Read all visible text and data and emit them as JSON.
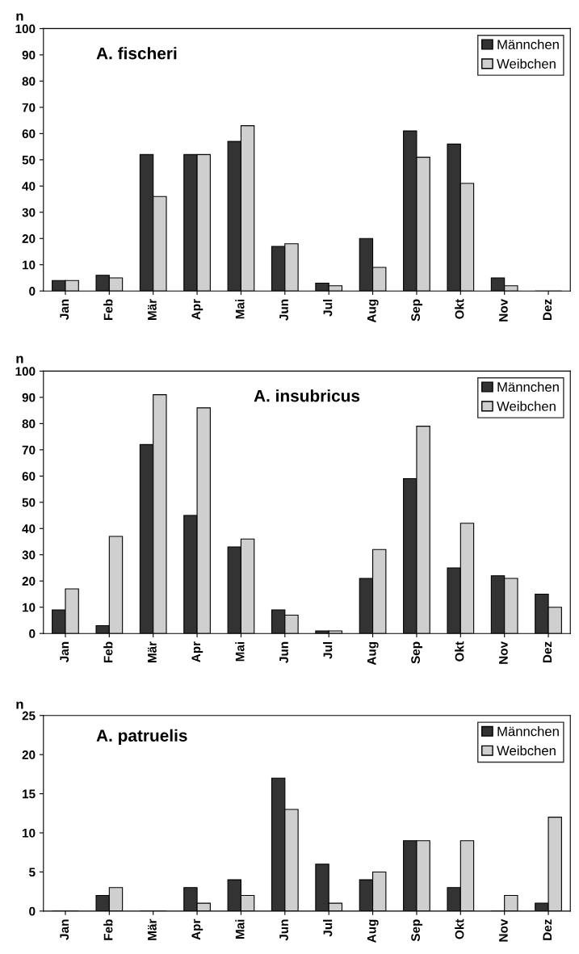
{
  "chart_data": [
    {
      "type": "bar",
      "title": "A. fischeri",
      "ylabel": "n",
      "categories": [
        "Jan",
        "Feb",
        "Mär",
        "Apr",
        "Mai",
        "Jun",
        "Jul",
        "Aug",
        "Sep",
        "Okt",
        "Nov",
        "Dez"
      ],
      "ylim": [
        0,
        100
      ],
      "yticks": [
        0,
        10,
        20,
        30,
        40,
        50,
        60,
        70,
        80,
        90,
        100
      ],
      "legend": "top right",
      "grid": false,
      "series": [
        {
          "name": "Männchen",
          "color": "#333333",
          "values": [
            4,
            6,
            52,
            52,
            57,
            17,
            3,
            20,
            61,
            56,
            5,
            0
          ]
        },
        {
          "name": "Weibchen",
          "color": "#cfcfcf",
          "values": [
            4,
            5,
            36,
            52,
            63,
            18,
            2,
            9,
            51,
            41,
            2,
            0
          ]
        }
      ]
    },
    {
      "type": "bar",
      "title": "A. insubricus",
      "ylabel": "n",
      "categories": [
        "Jan",
        "Feb",
        "Mär",
        "Apr",
        "Mai",
        "Jun",
        "Jul",
        "Aug",
        "Sep",
        "Okt",
        "Nov",
        "Dez"
      ],
      "ylim": [
        0,
        100
      ],
      "yticks": [
        0,
        10,
        20,
        30,
        40,
        50,
        60,
        70,
        80,
        90,
        100
      ],
      "legend": "top right",
      "grid": false,
      "series": [
        {
          "name": "Männchen",
          "color": "#333333",
          "values": [
            9,
            3,
            72,
            45,
            33,
            9,
            1,
            21,
            59,
            25,
            22,
            15
          ]
        },
        {
          "name": "Weibchen",
          "color": "#cfcfcf",
          "values": [
            17,
            37,
            91,
            86,
            36,
            7,
            1,
            32,
            79,
            42,
            21,
            10
          ]
        }
      ]
    },
    {
      "type": "bar",
      "title": "A. patruelis",
      "ylabel": "n",
      "categories": [
        "Jan",
        "Feb",
        "Mär",
        "Apr",
        "Mai",
        "Jun",
        "Jul",
        "Aug",
        "Sep",
        "Okt",
        "Nov",
        "Dez"
      ],
      "ylim": [
        0,
        25
      ],
      "yticks": [
        0,
        5,
        10,
        15,
        20,
        25
      ],
      "legend": "top right",
      "grid": false,
      "series": [
        {
          "name": "Männchen",
          "color": "#333333",
          "values": [
            0,
            2,
            0,
            3,
            4,
            17,
            6,
            4,
            9,
            3,
            0,
            1
          ]
        },
        {
          "name": "Weibchen",
          "color": "#cfcfcf",
          "values": [
            0,
            3,
            0,
            1,
            2,
            13,
            1,
            5,
            9,
            9,
            2,
            12
          ]
        }
      ]
    }
  ]
}
